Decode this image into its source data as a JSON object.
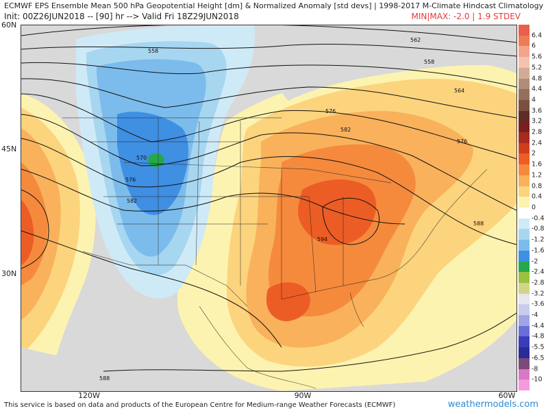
{
  "header": {
    "line1": "ECMWF EPS Ensemble Mean 500 hPa Geopotential Height [dm] & Normalized Anomaly [std devs] | 1998-2017 M-Climate Hindcast Climatology",
    "line2": "Init: 00Z26JUN2018 -- [90] hr --> Valid Fri 18Z29JUN2018",
    "minmax": "MIN|MAX: -2.0 | 1.9 STDEV"
  },
  "axes": {
    "lat_labels": [
      "60N",
      "45N",
      "30N"
    ],
    "lon_labels": [
      "120W",
      "90W",
      "60W"
    ]
  },
  "contour_labels": [
    "558",
    "562",
    "558",
    "564",
    "576",
    "576",
    "582",
    "570",
    "576",
    "582",
    "594",
    "588",
    "588"
  ],
  "legend": {
    "ticks": [
      "6.4",
      "6",
      "5.6",
      "5.2",
      "4.8",
      "4.4",
      "4",
      "3.6",
      "3.2",
      "2.8",
      "2.4",
      "2",
      "1.6",
      "1.2",
      "0.8",
      "0.4",
      "0",
      "-0.4",
      "-0.8",
      "-1.2",
      "-1.6",
      "-2",
      "-2.4",
      "-2.8",
      "-3.2",
      "-3.6",
      "-4",
      "-4.4",
      "-4.8",
      "-5.5",
      "-6.5",
      "-8",
      "-10"
    ],
    "colors": [
      "#e8604a",
      "#ef7a57",
      "#f3a58c",
      "#f6c2b0",
      "#d2aa95",
      "#b28c76",
      "#93705e",
      "#7a4f3e",
      "#5e2d24",
      "#7a1f1f",
      "#a62a1e",
      "#cf3d1f",
      "#ec5d25",
      "#f58a3d",
      "#f9b15c",
      "#fcd47e",
      "#fbf3b0",
      "#ffffff",
      "#cfeaf7",
      "#a7d6f1",
      "#7cbcec",
      "#3f8fe3",
      "#25a84a",
      "#9ac23f",
      "#d3d48a",
      "#e6e6ee",
      "#c9ccee",
      "#a0a4e6",
      "#6a6ed8",
      "#3a3cb8",
      "#2a2a98",
      "#7b4a7a",
      "#d978c6",
      "#f49ade"
    ]
  },
  "footer": {
    "credit": "This service is based on data and products of the European Centre for Medium-range Weather Forecasts (ECMWF)",
    "brand": "weathermodels.com"
  }
}
